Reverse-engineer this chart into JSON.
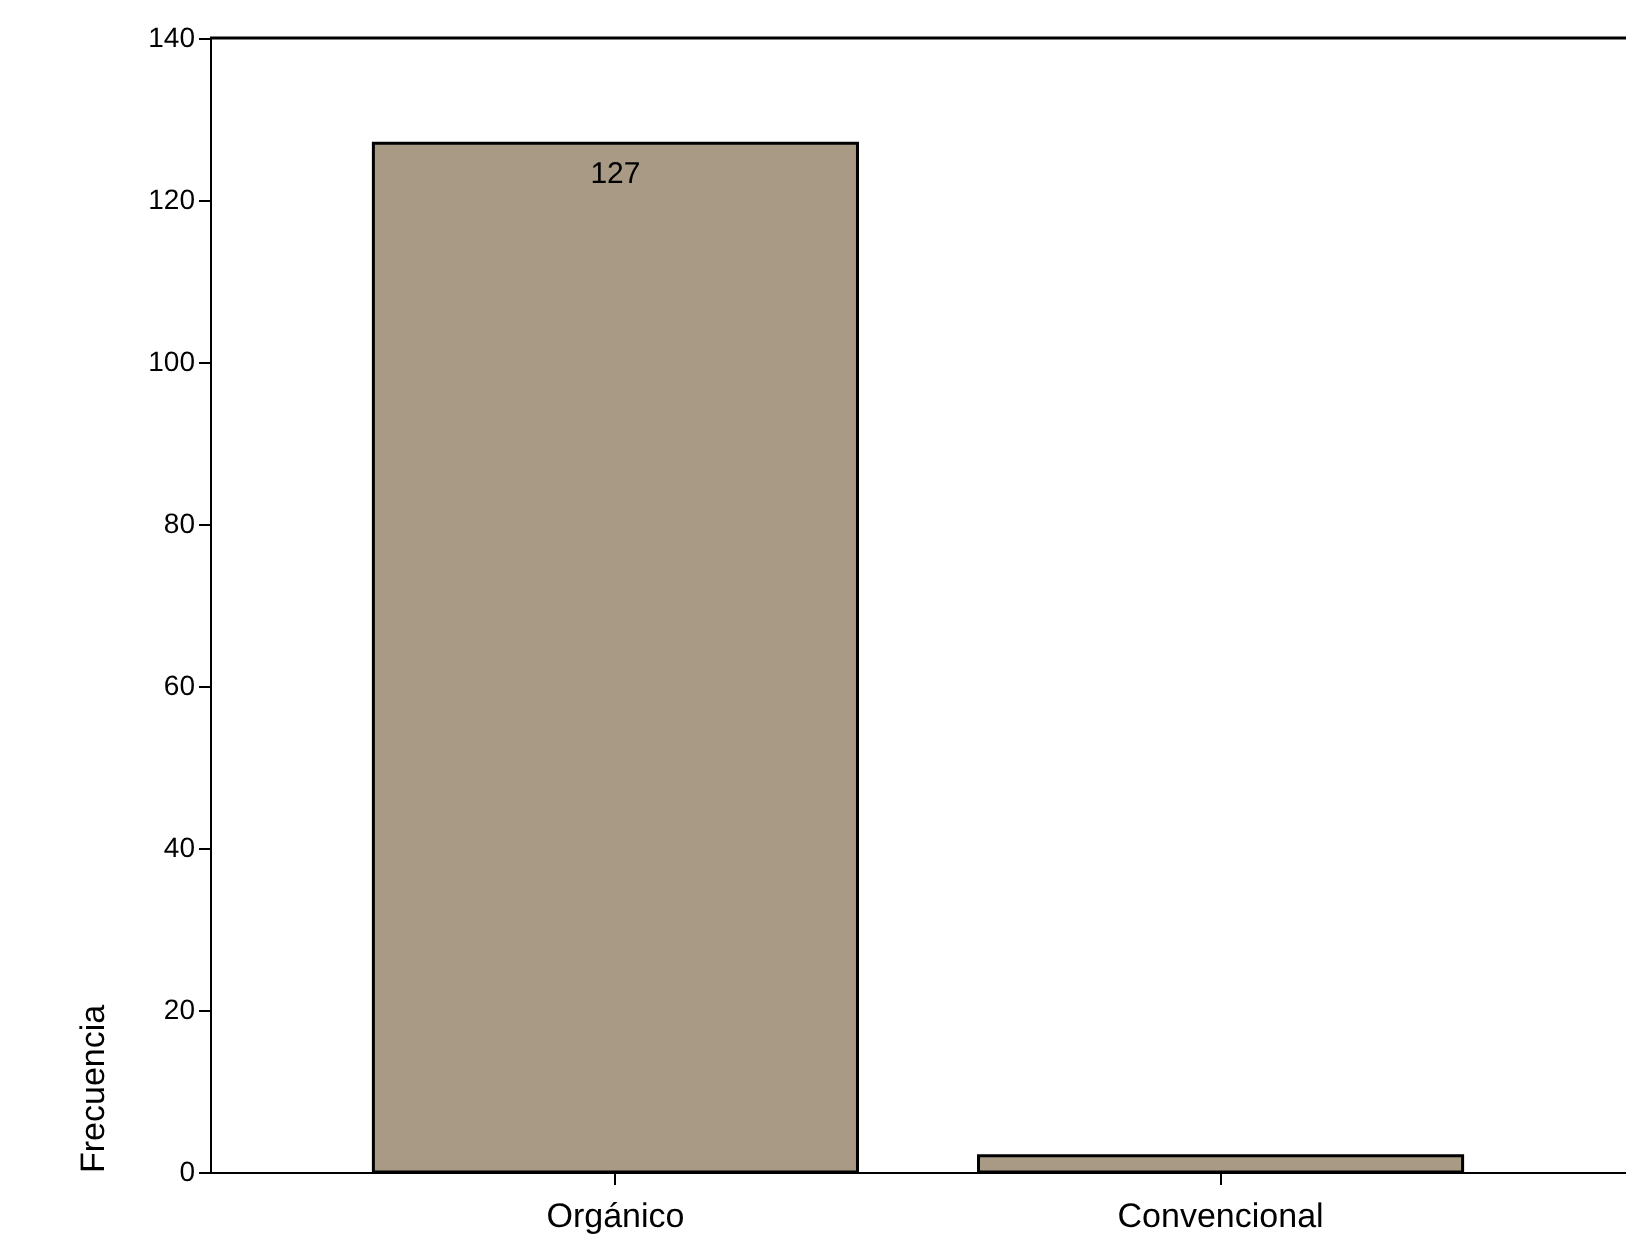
{
  "chart_data": {
    "type": "bar",
    "ylabel": "Frecuencia",
    "categories": [
      "Orgánico",
      "Convencional"
    ],
    "values": [
      127,
      2
    ],
    "value_labels": [
      "127",
      null
    ],
    "color": "#a89a84",
    "ylim": [
      0,
      140
    ],
    "yticks": [
      0,
      20,
      40,
      60,
      80,
      100,
      120,
      140
    ],
    "grid": false
  }
}
